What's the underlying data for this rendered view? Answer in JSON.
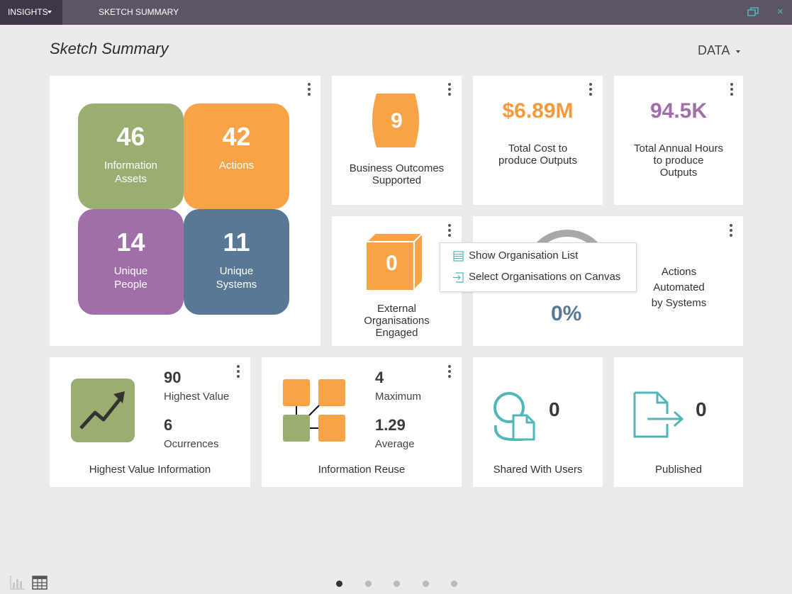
{
  "topbar": {
    "insights_label": "INSIGHTS",
    "view_title": "SKETCH SUMMARY",
    "restore_icon": "restore-window-icon",
    "close_icon": "close-icon",
    "close_glyph": "×"
  },
  "page": {
    "title": "Sketch Summary",
    "data_menu_label": "DATA"
  },
  "summary_tiles": [
    {
      "value": "46",
      "label_line1": "Information",
      "label_line2": "Assets",
      "color": "#9aae72"
    },
    {
      "value": "42",
      "label_line1": "Actions",
      "label_line2": "",
      "color": "#f9a348"
    },
    {
      "value": "14",
      "label_line1": "Unique",
      "label_line2": "People",
      "color": "#a06faa"
    },
    {
      "value": "11",
      "label_line1": "Unique",
      "label_line2": "Systems",
      "color": "#597896"
    }
  ],
  "business_outcomes": {
    "value": "9",
    "label_line1": "Business Outcomes",
    "label_line2": "Supported",
    "color": "#f9a348"
  },
  "total_cost": {
    "value": "$6.89M",
    "label_line1": "Total Cost to",
    "label_line2": "produce Outputs",
    "color": "#f39a3c"
  },
  "total_hours": {
    "value": "94.5K",
    "label_line1": "Total Annual Hours",
    "label_line2": "to produce",
    "label_line3": "Outputs",
    "color": "#a06faa"
  },
  "external_orgs": {
    "value": "0",
    "label_line1": "External",
    "label_line2": "Organisations",
    "label_line3": "Engaged",
    "color": "#f9a348"
  },
  "context_menu": {
    "items": [
      {
        "label": "Show Organisation List",
        "icon": "list-icon"
      },
      {
        "label": "Select Organisations on Canvas",
        "icon": "select-on-canvas-icon"
      }
    ]
  },
  "actions_automated": {
    "value": "0%",
    "label_line1": "Actions",
    "label_line2": "Automated",
    "label_line3": "by Systems",
    "gauge_fraction": 0,
    "color": "#597896"
  },
  "highest_value": {
    "num1": "90",
    "lab1": "Highest Value",
    "num2": "6",
    "lab2": "Ocurrences",
    "caption": "Highest Value Information",
    "icon": "trending-up-icon",
    "color": "#9aae72"
  },
  "info_reuse": {
    "num1": "4",
    "lab1": "Maximum",
    "num2": "1.29",
    "lab2": "Average",
    "caption": "Information Reuse",
    "icon": "network-icon"
  },
  "shared": {
    "value": "0",
    "caption": "Shared With Users",
    "icon": "shared-document-icon",
    "color": "#4fb7b9"
  },
  "published": {
    "value": "0",
    "caption": "Published",
    "icon": "publish-document-icon",
    "color": "#4fb7b9"
  },
  "footer": {
    "chart_view_icon": "bar-chart-icon",
    "table_view_icon": "table-icon",
    "pages": 5,
    "active_page": 1
  }
}
